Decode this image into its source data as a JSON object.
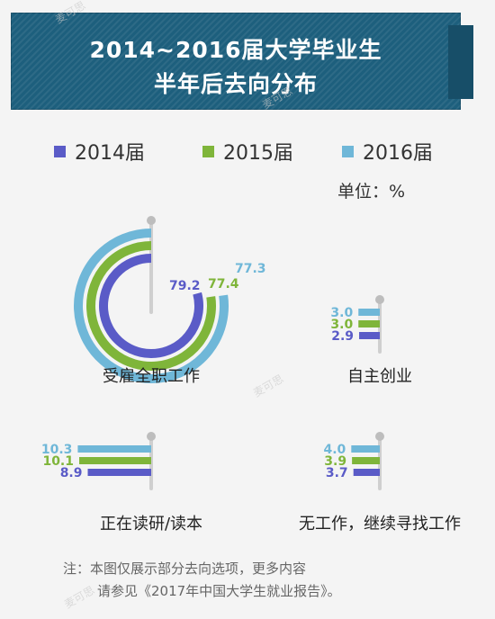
{
  "title_line1": "2014~2016届大学毕业生",
  "title_line2": "半年后去向分布",
  "unit": "单位：%",
  "note_line1": "注：本图仅展示部分去向选项，更多内容",
  "note_line2": "请参见《2017年中国大学生就业报告》。",
  "chart_data": {
    "type": "radial-bar",
    "unit": "%",
    "series": [
      {
        "name": "2014届",
        "color": "#5a5bc7"
      },
      {
        "name": "2015届",
        "color": "#7fb53a"
      },
      {
        "name": "2016届",
        "color": "#6fb7d8"
      }
    ],
    "panels": [
      {
        "category": "受雇全职工作",
        "values": [
          79.2,
          77.4,
          77.3
        ]
      },
      {
        "category": "自主创业",
        "values": [
          2.9,
          3.0,
          3.0
        ]
      },
      {
        "category": "正在读研/读本",
        "values": [
          8.9,
          10.1,
          10.3
        ]
      },
      {
        "category": "无工作，继续寻找工作",
        "values": [
          3.7,
          3.9,
          4.0
        ]
      }
    ]
  }
}
